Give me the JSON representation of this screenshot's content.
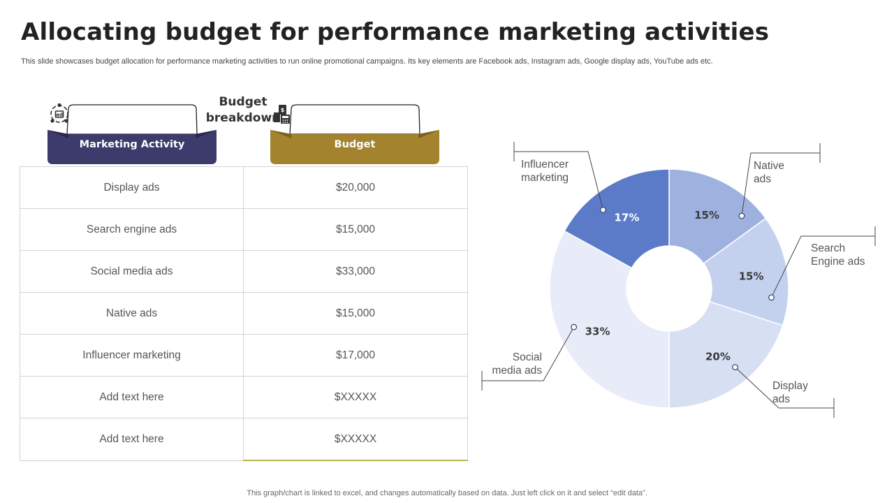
{
  "page": {
    "title": "Allocating budget for performance marketing activities",
    "subtitle": "This slide showcases budget allocation for performance marketing activities to run online promotional campaigns. Its key  elements are Facebook ads, Instagram ads, Google display ads, YouTube ads etc.",
    "center_label_line1": "Budget",
    "center_label_line2": "breakdown",
    "footer": "This graph/chart is linked to excel,  and changes automatically based on data. Just left click on it and select “edit data”."
  },
  "table": {
    "headers": [
      {
        "label": "Marketing Activity",
        "color": "#3d3b6b",
        "icon": "marketing-icon"
      },
      {
        "label": "Budget",
        "color": "#a3832d",
        "icon": "budget-icon"
      }
    ],
    "rows": [
      {
        "activity": "Display ads",
        "budget": "$20,000"
      },
      {
        "activity": "Search engine ads",
        "budget": "$15,000"
      },
      {
        "activity": "Social media ads",
        "budget": "$33,000"
      },
      {
        "activity": "Native ads",
        "budget": "$15,000"
      },
      {
        "activity": "Influencer  marketing",
        "budget": "$17,000"
      },
      {
        "activity": "Add text here",
        "budget": "$XXXXX"
      },
      {
        "activity": "Add text here",
        "budget": "$XXXXX"
      }
    ]
  },
  "chart_data": {
    "type": "pie",
    "variant": "donut",
    "categories": [
      "Native ads",
      "Search Engine ads",
      "Display ads",
      "Social media ads",
      "Influencer marketing"
    ],
    "values": [
      15,
      15,
      20,
      33,
      17
    ],
    "labels": [
      "15%",
      "15%",
      "20%",
      "33%",
      "17%"
    ],
    "callout_lines": [
      [
        "Native",
        "ads"
      ],
      [
        "Search",
        "Engine ads"
      ],
      [
        "Display",
        "ads"
      ],
      [
        "Social",
        "media ads"
      ],
      [
        "Influencer",
        "marketing"
      ]
    ],
    "colors": [
      "#9eb1df",
      "#c4d1ee",
      "#d7dff3",
      "#e7ecf8",
      "#5b7bc9"
    ],
    "label_colors": [
      "#3a3a3a",
      "#3a3a3a",
      "#3a3a3a",
      "#3a3a3a",
      "#ffffff"
    ]
  }
}
